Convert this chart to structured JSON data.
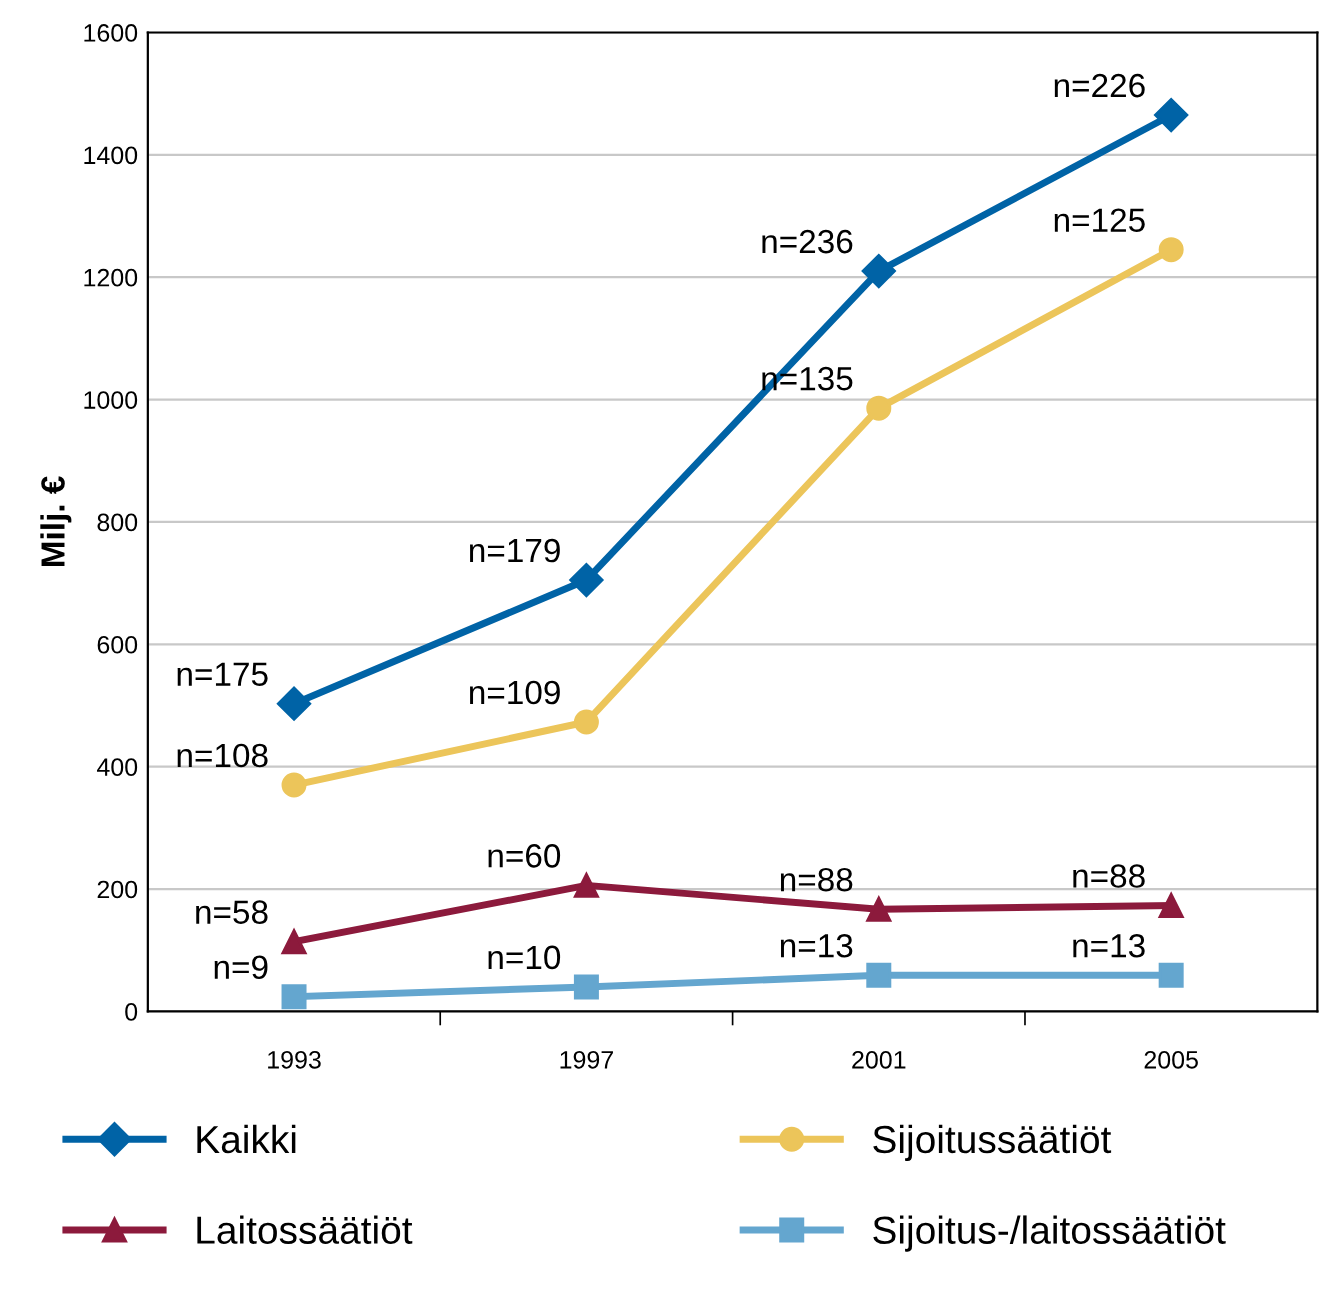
{
  "chart_data": {
    "type": "line",
    "ylabel": "Milj. €",
    "categories": [
      "1993",
      "1997",
      "2001",
      "2005"
    ],
    "ylim": [
      0,
      1600
    ],
    "yticks": [
      0,
      200,
      400,
      600,
      800,
      1000,
      1200,
      1400,
      1600
    ],
    "grid": "y",
    "legend": "bottom",
    "series": [
      {
        "name": "Kaikki",
        "color": "#0063a6",
        "marker": "diamond",
        "values": [
          503,
          705,
          1210,
          1465
        ]
      },
      {
        "name": "Sijoitussäätiöt",
        "color": "#ecc55a",
        "marker": "circle",
        "values": [
          370,
          473,
          986,
          1245
        ]
      },
      {
        "name": "Laitossäätiöt",
        "color": "#8c1a3c",
        "marker": "triangle",
        "values": [
          114,
          206,
          167,
          173
        ]
      },
      {
        "name": "Sijoitus-/laitossäätiöt",
        "color": "#64a6cf",
        "marker": "square",
        "values": [
          24,
          40,
          59,
          59
        ]
      }
    ],
    "annotations": [
      {
        "text": "n=175",
        "x": "1993",
        "y": 503
      },
      {
        "text": "n=179",
        "x": "1997",
        "y": 705
      },
      {
        "text": "n=236",
        "x": "2001",
        "y": 1210
      },
      {
        "text": "n=226",
        "x": "2005",
        "y": 1465
      },
      {
        "text": "n=108",
        "x": "1993",
        "y": 370
      },
      {
        "text": "n=109",
        "x": "1997",
        "y": 473
      },
      {
        "text": "n=135",
        "x": "2001",
        "y": 986
      },
      {
        "text": "n=125",
        "x": "2005",
        "y": 1245
      },
      {
        "text": "n=58",
        "x": "1993",
        "y": 114
      },
      {
        "text": "n=60",
        "x": "1997",
        "y": 206
      },
      {
        "text": "n=88",
        "x": "2001",
        "y": 167
      },
      {
        "text": "n=88",
        "x": "2005",
        "y": 173
      },
      {
        "text": "n=9",
        "x": "1993",
        "y": 24
      },
      {
        "text": "n=10",
        "x": "1997",
        "y": 40
      },
      {
        "text": "n=13",
        "x": "2001",
        "y": 59
      },
      {
        "text": "n=13",
        "x": "2005",
        "y": 59
      }
    ]
  }
}
